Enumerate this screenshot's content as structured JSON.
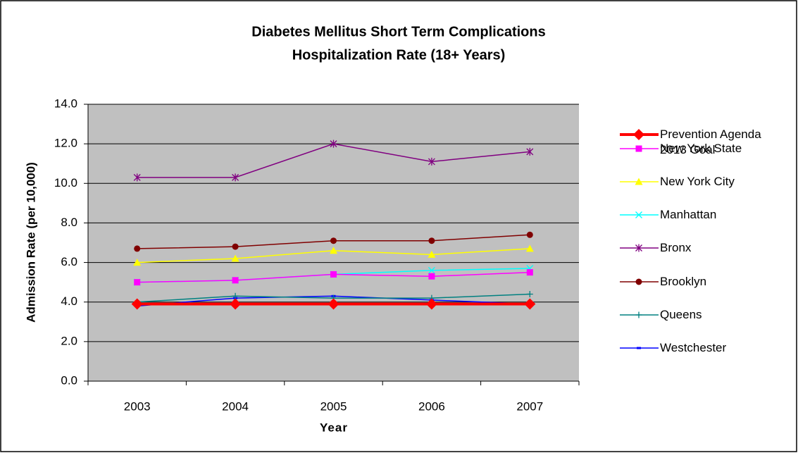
{
  "chart_data": {
    "type": "line",
    "title": [
      "Diabetes Mellitus Short Term Complications",
      "Hospitalization Rate (18+ Years)"
    ],
    "x_label": "Year",
    "y_label": "Admission Rate (per 10,000)",
    "categories": [
      "2003",
      "2004",
      "2005",
      "2006",
      "2007"
    ],
    "ylim": [
      0,
      14
    ],
    "yticks": [
      {
        "value": 0,
        "label": "0.0"
      },
      {
        "value": 2,
        "label": "2.0"
      },
      {
        "value": 4,
        "label": "4.0"
      },
      {
        "value": 6,
        "label": "6.0"
      },
      {
        "value": 8,
        "label": "8.0"
      },
      {
        "value": 10,
        "label": "10.0"
      },
      {
        "value": 12,
        "label": "12.0"
      },
      {
        "value": 14,
        "label": "14.0"
      }
    ],
    "grid": true,
    "legend": "right",
    "background": "#c0c0c0",
    "series": [
      {
        "name": "Prevention Agenda 2013 Goal",
        "color": "#ff0000",
        "marker": "diamond",
        "values": [
          3.9,
          3.9,
          3.9,
          3.9,
          3.9
        ]
      },
      {
        "name": "New York State",
        "color": "#ff00ff",
        "marker": "square",
        "values": [
          5.0,
          5.1,
          5.4,
          5.3,
          5.5
        ]
      },
      {
        "name": "New York City",
        "color": "#ffff00",
        "marker": "triangle",
        "values": [
          6.0,
          6.2,
          6.6,
          6.4,
          6.7
        ]
      },
      {
        "name": "Manhattan",
        "color": "#00ffff",
        "marker": "x",
        "values": [
          5.0,
          5.1,
          5.4,
          5.6,
          5.7
        ]
      },
      {
        "name": "Bronx",
        "color": "#800080",
        "marker": "asterisk",
        "values": [
          10.3,
          10.3,
          12.0,
          11.1,
          11.6
        ]
      },
      {
        "name": "Brooklyn",
        "color": "#800000",
        "marker": "circle",
        "values": [
          6.7,
          6.8,
          7.1,
          7.1,
          7.4
        ]
      },
      {
        "name": "Queens",
        "color": "#008080",
        "marker": "plus",
        "values": [
          4.0,
          4.3,
          4.2,
          4.2,
          4.4
        ]
      },
      {
        "name": "Westchester",
        "color": "#0000ff",
        "marker": "dash",
        "values": [
          3.8,
          4.2,
          4.3,
          4.1,
          3.9
        ]
      }
    ]
  }
}
